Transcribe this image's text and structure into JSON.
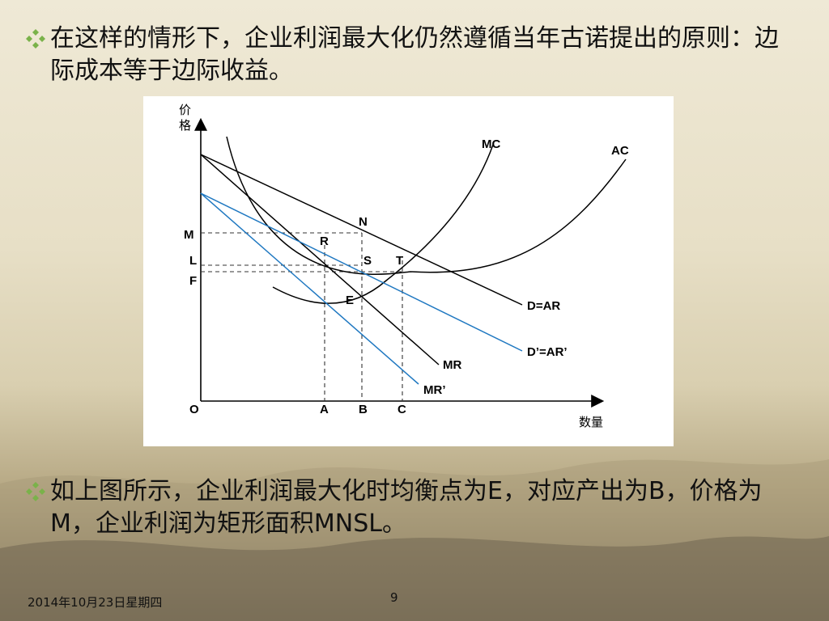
{
  "slide": {
    "bullet1": "在这样的情形下，企业利润最大化仍然遵循当年古诺提出的原则：边际成本等于边际收益。",
    "bullet2": "如上图所示，企业利润最大化时均衡点为E，对应产出为B，价格为M，企业利润为矩形面积MNSL。",
    "bullet_icon": "diamond-cluster-icon",
    "footer_date": "2014年10月23日星期四",
    "page_number": "9"
  },
  "diagram": {
    "y_axis_label_1": "价",
    "y_axis_label_2": "格",
    "x_axis_label": "数量",
    "origin": "O",
    "price_labels": {
      "m": "M",
      "l": "L",
      "f": "F"
    },
    "quantity_labels": {
      "a": "A",
      "b": "B",
      "c": "C"
    },
    "point_labels": {
      "n": "N",
      "r": "R",
      "s": "S",
      "t": "T",
      "e": "E"
    },
    "curve_labels": {
      "mc": "MC",
      "ac": "AC",
      "d_ar": "D=AR",
      "d_ar_prime": "D’=AR’",
      "mr": "MR",
      "mr_prime": "MR’"
    },
    "colors": {
      "black_curve": "#000000",
      "blue_curve": "#1f78c1",
      "dashed": "#333333"
    }
  }
}
